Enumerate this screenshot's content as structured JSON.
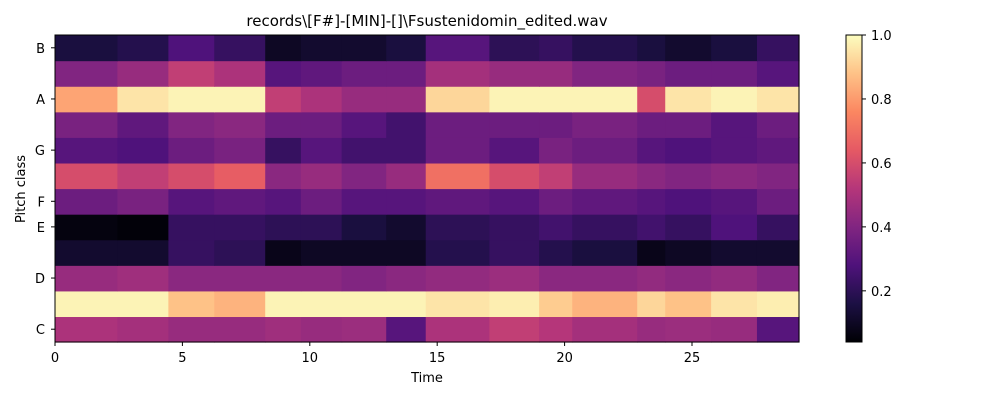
{
  "chart_data": {
    "type": "heatmap",
    "title": "records\\[F#]-[MIN]-[]\\Fsustenidomin_edited.wav",
    "xlabel": "Time",
    "ylabel": "Pitch class",
    "xlim": [
      0,
      29.2
    ],
    "x_ticks": [
      0,
      5,
      10,
      15,
      20,
      25
    ],
    "x_tick_labels": [
      "0",
      "5",
      "10",
      "15",
      "20",
      "25"
    ],
    "rows": [
      "C",
      "C#",
      "D",
      "D#",
      "E",
      "F",
      "F#",
      "G",
      "G#",
      "A",
      "A#",
      "B"
    ],
    "y_tick_labels": [
      "C",
      "D",
      "E",
      "F",
      "G",
      "A",
      "B"
    ],
    "y_tick_rows": [
      0,
      2,
      4,
      5,
      7,
      9,
      11
    ],
    "segment_boundaries": [
      0,
      2.45,
      4.45,
      6.25,
      8.25,
      9.65,
      11.25,
      13.0,
      14.55,
      17.05,
      19.0,
      20.3,
      22.85,
      23.95,
      25.75,
      27.55,
      29.2
    ],
    "segment_values": [
      [
        0.5,
        0.48,
        0.45,
        0.45,
        0.47,
        0.45,
        0.46,
        0.3,
        0.5,
        0.55,
        0.52,
        0.48,
        0.45,
        0.46,
        0.45,
        0.3
      ],
      [
        0.98,
        0.98,
        0.88,
        0.85,
        0.98,
        0.98,
        0.98,
        0.98,
        0.95,
        0.97,
        0.9,
        0.85,
        0.92,
        0.88,
        0.95,
        0.97
      ],
      [
        0.45,
        0.47,
        0.42,
        0.42,
        0.42,
        0.42,
        0.4,
        0.42,
        0.44,
        0.46,
        0.42,
        0.42,
        0.44,
        0.42,
        0.44,
        0.4
      ],
      [
        0.12,
        0.12,
        0.22,
        0.2,
        0.08,
        0.1,
        0.1,
        0.1,
        0.18,
        0.22,
        0.18,
        0.15,
        0.08,
        0.1,
        0.12,
        0.12
      ],
      [
        0.06,
        0.05,
        0.22,
        0.22,
        0.2,
        0.2,
        0.15,
        0.12,
        0.2,
        0.22,
        0.25,
        0.22,
        0.25,
        0.22,
        0.28,
        0.22
      ],
      [
        0.35,
        0.38,
        0.3,
        0.32,
        0.3,
        0.35,
        0.3,
        0.3,
        0.32,
        0.3,
        0.35,
        0.32,
        0.3,
        0.28,
        0.3,
        0.35
      ],
      [
        0.6,
        0.55,
        0.6,
        0.65,
        0.42,
        0.45,
        0.4,
        0.45,
        0.7,
        0.6,
        0.55,
        0.45,
        0.42,
        0.4,
        0.42,
        0.4
      ],
      [
        0.3,
        0.28,
        0.35,
        0.38,
        0.22,
        0.3,
        0.25,
        0.25,
        0.35,
        0.3,
        0.38,
        0.35,
        0.3,
        0.28,
        0.3,
        0.32
      ],
      [
        0.38,
        0.32,
        0.4,
        0.42,
        0.35,
        0.35,
        0.3,
        0.25,
        0.35,
        0.35,
        0.35,
        0.38,
        0.35,
        0.35,
        0.3,
        0.35
      ],
      [
        0.82,
        0.95,
        0.98,
        0.98,
        0.55,
        0.5,
        0.45,
        0.45,
        0.92,
        0.98,
        0.98,
        0.98,
        0.6,
        0.95,
        0.98,
        0.95
      ],
      [
        0.4,
        0.45,
        0.55,
        0.5,
        0.3,
        0.32,
        0.35,
        0.35,
        0.48,
        0.45,
        0.45,
        0.4,
        0.38,
        0.35,
        0.35,
        0.3
      ],
      [
        0.15,
        0.18,
        0.28,
        0.22,
        0.1,
        0.12,
        0.12,
        0.15,
        0.3,
        0.2,
        0.22,
        0.18,
        0.15,
        0.12,
        0.15,
        0.22
      ]
    ],
    "colorbar": {
      "ticks": [
        0.2,
        0.4,
        0.6,
        0.8,
        1.0
      ],
      "tick_labels": [
        "0.2",
        "0.4",
        "0.6",
        "0.8",
        "1.0"
      ],
      "range": [
        0.04,
        1.0
      ]
    },
    "colormap": "magma",
    "colormap_stops": [
      "#000004",
      "#1c1044",
      "#4f127b",
      "#812581",
      "#b5367a",
      "#e55964",
      "#fb8761",
      "#fec287",
      "#fcfdbf"
    ],
    "grid": false
  }
}
